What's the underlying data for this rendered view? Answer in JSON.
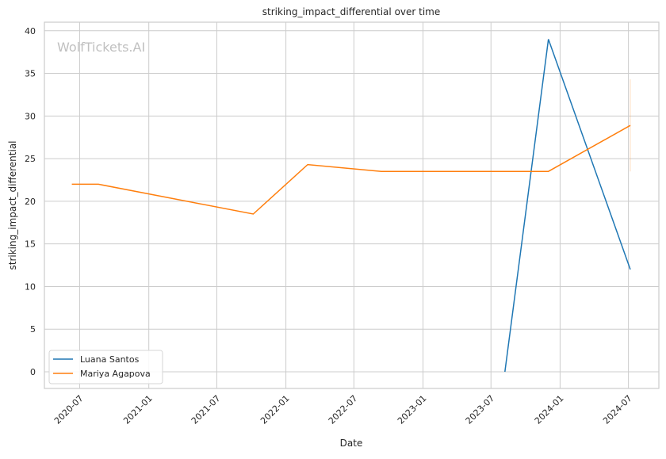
{
  "chart_data": {
    "type": "line",
    "title": "striking_impact_differential over time",
    "xlabel": "Date",
    "ylabel": "striking_impact_differential",
    "watermark": "WolfTickets.AI",
    "xlim": [
      "2020-03-29",
      "2024-09-20"
    ],
    "ylim": [
      -1.95,
      41
    ],
    "x_ticks": [
      "2020-07",
      "2021-01",
      "2021-07",
      "2022-01",
      "2022-07",
      "2023-01",
      "2023-07",
      "2024-01",
      "2024-07"
    ],
    "y_ticks": [
      0,
      5,
      10,
      15,
      20,
      25,
      30,
      35,
      40
    ],
    "grid": true,
    "legend_position": "bottom-left",
    "series": [
      {
        "name": "Luana Santos",
        "color": "#1f77b4",
        "x": [
          "2023-08-07",
          "2023-12-01",
          "2024-07-06"
        ],
        "y": [
          0,
          39,
          12
        ]
      },
      {
        "name": "Mariya Agapova",
        "color": "#ff7f0e",
        "x": [
          "2020-06-10",
          "2020-08-20",
          "2021-10-06",
          "2022-02-28",
          "2022-09-12",
          "2023-12-01",
          "2024-07-06"
        ],
        "y": [
          22,
          22,
          18.5,
          24.3,
          23.5,
          23.5,
          28.9
        ],
        "ci_at_last": [
          23.5,
          34.3
        ]
      }
    ]
  }
}
